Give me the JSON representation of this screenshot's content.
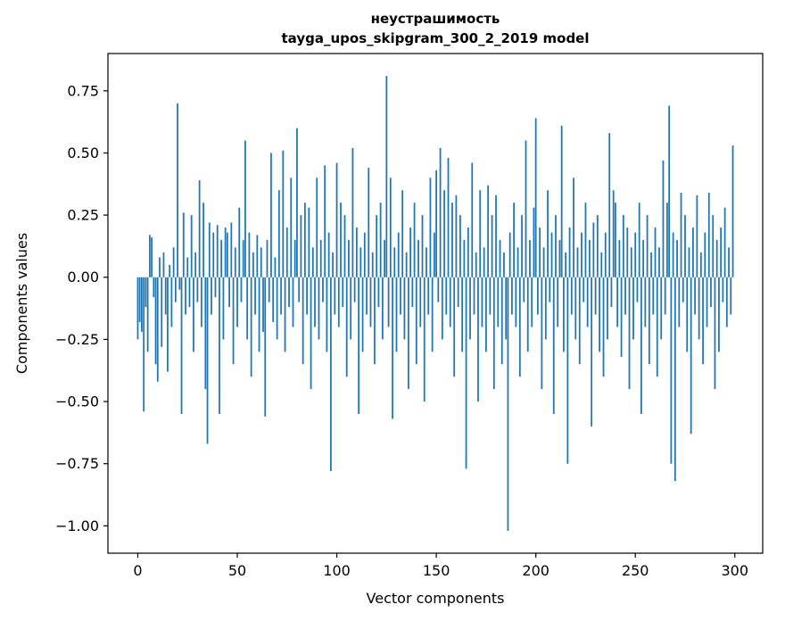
{
  "figure": {
    "title_line1": "неустрашимость",
    "title_line2": "tayga_upos_skipgram_300_2_2019 model",
    "xlabel": "Vector components",
    "ylabel": "Components values"
  },
  "chart_data": {
    "type": "bar",
    "title": "неустрашимость — tayga_upos_skipgram_300_2_2019 model",
    "xlabel": "Vector components",
    "ylabel": "Components values",
    "bar_color": "#1f77b4",
    "background_color": "#ffffff",
    "grid": false,
    "legend": false,
    "xlim": [
      -15,
      314
    ],
    "ylim": [
      -1.11,
      0.9
    ],
    "xticks": {
      "values": [
        0,
        50,
        100,
        150,
        200,
        250,
        300
      ],
      "labels": [
        "0",
        "50",
        "100",
        "150",
        "200",
        "250",
        "300"
      ]
    },
    "yticks": {
      "values": [
        0.75,
        0.5,
        0.25,
        0.0,
        -0.25,
        -0.5,
        -0.75,
        -1.0
      ],
      "labels": [
        "0.75",
        "0.50",
        "0.25",
        "0.00",
        "−0.25",
        "−0.50",
        "−0.75",
        "−1.00"
      ]
    },
    "x_start": 0,
    "n_components": 300,
    "values": [
      -0.25,
      -0.18,
      -0.22,
      -0.54,
      -0.12,
      -0.3,
      0.17,
      0.16,
      -0.08,
      -0.35,
      -0.42,
      0.08,
      -0.28,
      0.1,
      -0.15,
      -0.38,
      0.05,
      -0.2,
      0.12,
      -0.1,
      0.7,
      -0.05,
      -0.55,
      0.26,
      -0.15,
      0.08,
      -0.12,
      0.25,
      -0.3,
      0.1,
      -0.1,
      0.39,
      -0.2,
      0.3,
      -0.45,
      -0.67,
      0.22,
      -0.15,
      0.18,
      -0.08,
      0.21,
      -0.55,
      0.15,
      -0.25,
      0.2,
      0.18,
      -0.12,
      0.22,
      -0.35,
      0.12,
      -0.2,
      0.28,
      -0.1,
      0.15,
      0.55,
      -0.25,
      0.18,
      -0.4,
      0.1,
      -0.15,
      0.17,
      -0.3,
      0.12,
      -0.22,
      -0.56,
      0.15,
      -0.1,
      0.5,
      -0.18,
      0.08,
      -0.25,
      0.35,
      -0.15,
      0.51,
      -0.3,
      0.2,
      -0.12,
      0.4,
      -0.2,
      0.15,
      0.6,
      -0.1,
      0.25,
      -0.35,
      0.3,
      -0.15,
      0.28,
      -0.45,
      0.12,
      -0.2,
      0.4,
      -0.25,
      0.15,
      -0.1,
      0.45,
      -0.3,
      0.18,
      -0.78,
      0.1,
      -0.15,
      0.46,
      -0.2,
      0.3,
      -0.12,
      0.25,
      -0.4,
      0.15,
      -0.25,
      0.52,
      -0.1,
      0.2,
      -0.55,
      0.12,
      -0.3,
      0.18,
      -0.15,
      0.44,
      -0.2,
      0.1,
      -0.35,
      0.25,
      -0.12,
      0.3,
      -0.25,
      0.15,
      0.81,
      -0.2,
      0.4,
      -0.57,
      0.12,
      -0.3,
      0.18,
      -0.15,
      0.35,
      -0.25,
      0.1,
      -0.45,
      0.2,
      -0.12,
      0.3,
      -0.35,
      0.15,
      -0.2,
      0.25,
      -0.5,
      0.12,
      -0.15,
      0.4,
      -0.3,
      0.18,
      0.43,
      -0.1,
      0.52,
      -0.25,
      0.35,
      -0.15,
      0.48,
      -0.2,
      0.3,
      -0.4,
      0.33,
      -0.12,
      0.25,
      -0.3,
      0.15,
      -0.77,
      0.2,
      -0.25,
      0.46,
      -0.15,
      0.1,
      -0.5,
      0.35,
      -0.2,
      0.12,
      -0.3,
      0.37,
      -0.15,
      0.25,
      -0.45,
      0.33,
      -0.2,
      0.15,
      -0.35,
      0.1,
      -0.25,
      -1.02,
      0.18,
      -0.15,
      0.3,
      -0.2,
      0.12,
      -0.4,
      0.25,
      -0.1,
      0.55,
      -0.3,
      0.15,
      -0.2,
      0.28,
      0.64,
      -0.15,
      0.2,
      -0.45,
      0.12,
      -0.25,
      0.35,
      -0.1,
      0.18,
      -0.55,
      0.25,
      -0.2,
      0.15,
      0.61,
      -0.3,
      0.1,
      -0.75,
      0.2,
      -0.15,
      0.4,
      -0.25,
      0.12,
      -0.35,
      0.18,
      -0.1,
      0.3,
      -0.2,
      0.15,
      -0.6,
      0.22,
      -0.15,
      0.25,
      -0.3,
      0.1,
      -0.4,
      0.18,
      -0.25,
      0.58,
      -0.12,
      0.35,
      0.3,
      -0.2,
      0.15,
      -0.32,
      0.25,
      -0.15,
      0.2,
      -0.45,
      0.12,
      -0.25,
      0.18,
      -0.1,
      0.3,
      -0.55,
      0.15,
      -0.2,
      0.25,
      -0.35,
      0.1,
      -0.15,
      0.2,
      -0.4,
      0.12,
      -0.25,
      0.47,
      -0.15,
      0.3,
      0.69,
      -0.75,
      0.18,
      -0.82,
      0.15,
      -0.2,
      0.34,
      -0.1,
      0.25,
      -0.3,
      0.12,
      -0.63,
      0.2,
      -0.15,
      0.33,
      -0.25,
      0.1,
      -0.35,
      0.18,
      -0.2,
      0.34,
      -0.12,
      0.25,
      -0.45,
      0.15,
      -0.3,
      0.2,
      -0.1,
      0.28,
      -0.2,
      0.12,
      -0.15,
      0.53
    ]
  }
}
